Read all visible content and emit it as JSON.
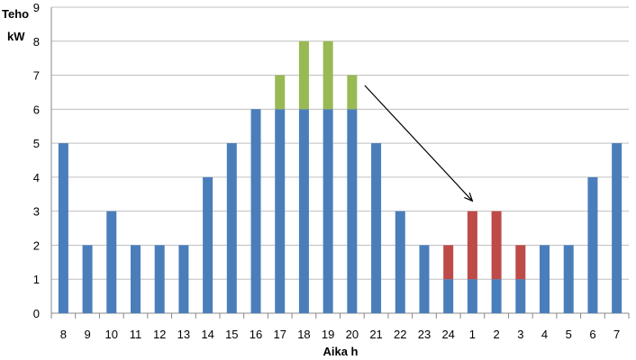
{
  "chart_data": {
    "type": "bar",
    "stacked": true,
    "categories": [
      "8",
      "9",
      "10",
      "11",
      "12",
      "13",
      "14",
      "15",
      "16",
      "17",
      "18",
      "19",
      "20",
      "21",
      "22",
      "23",
      "24",
      "1",
      "2",
      "3",
      "4",
      "5",
      "6",
      "7"
    ],
    "series": [
      {
        "color": "#4a7ebb",
        "values": [
          5,
          2,
          3,
          2,
          2,
          2,
          4,
          5,
          6,
          6,
          6,
          6,
          6,
          5,
          3,
          2,
          1,
          1,
          1,
          1,
          2,
          2,
          4,
          5
        ]
      },
      {
        "color": "#98b954",
        "values": [
          0,
          0,
          0,
          0,
          0,
          0,
          0,
          0,
          0,
          1,
          2,
          2,
          1,
          0,
          0,
          0,
          0,
          0,
          0,
          0,
          0,
          0,
          0,
          0
        ]
      },
      {
        "color": "#be4b48",
        "values": [
          0,
          0,
          0,
          0,
          0,
          0,
          0,
          0,
          0,
          0,
          0,
          0,
          0,
          0,
          0,
          0,
          1,
          2,
          2,
          1,
          0,
          0,
          0,
          0
        ]
      }
    ],
    "ylabel_line1": "Teho",
    "ylabel_line2": "kW",
    "xlabel": "Aika h",
    "ylim": [
      0,
      9
    ],
    "yticks": [
      "0",
      "1",
      "2",
      "3",
      "4",
      "5",
      "6",
      "7",
      "8",
      "9"
    ],
    "grid": true,
    "annotation": {
      "type": "arrow",
      "from_category": "20",
      "from_value": 6.7,
      "to_category": "1",
      "to_value": 3.3
    }
  }
}
